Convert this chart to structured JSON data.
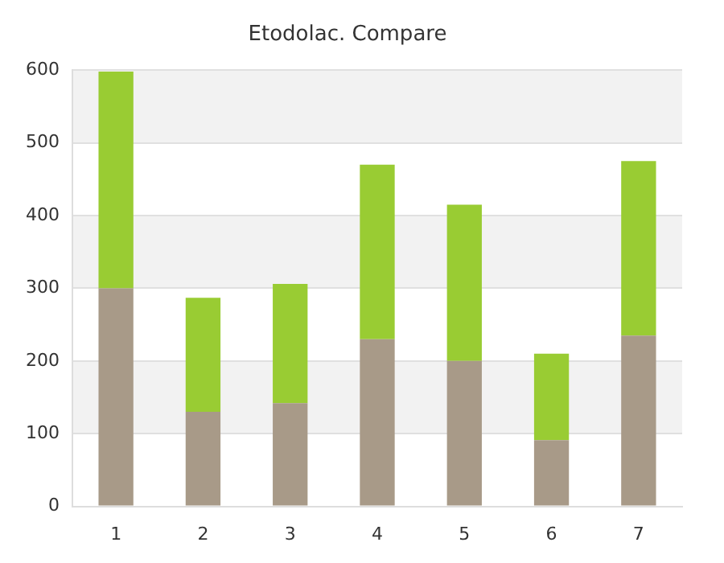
{
  "chart_data": {
    "type": "bar",
    "title": "Etodolac. Compare",
    "categories": [
      "1",
      "2",
      "3",
      "4",
      "5",
      "6",
      "7"
    ],
    "stacked": true,
    "series": [
      {
        "color": "#a89a88",
        "values": [
          300,
          130,
          142,
          230,
          200,
          91,
          235
        ]
      },
      {
        "color": "#99cc33",
        "values": [
          298,
          157,
          164,
          240,
          215,
          119,
          240
        ]
      }
    ],
    "ylim": [
      0,
      600
    ],
    "yticks": [
      0,
      100,
      200,
      300,
      400,
      500,
      600
    ],
    "grid": "y",
    "legend": false
  }
}
